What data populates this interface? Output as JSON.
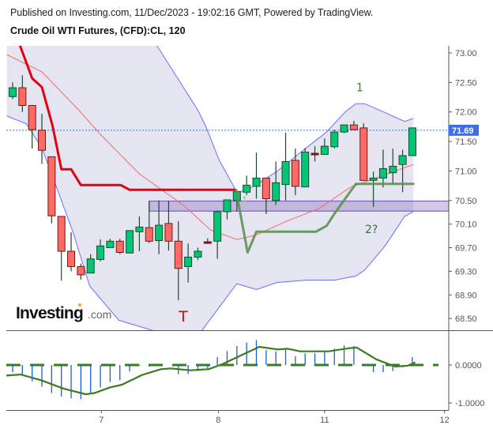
{
  "header": {
    "published": "Published on Investing.com, 11/Dec/2023 - 19:02:16 GMT, Powered by TradingView.",
    "symbol": "Crude Oil WTI Futures, (CFD):CL, 120"
  },
  "logo": {
    "text": "Investing",
    "suffix": ".com"
  },
  "colors": {
    "up": "#00c676",
    "down": "#ff6b62",
    "wick": "#1d4a2a",
    "band": "#6b6bff",
    "band_fill": "#e5e5f1",
    "ma": "#ef6b6b",
    "red_line": "#e3000f",
    "green_line": "#5c9150",
    "zone": "#8060b8",
    "price_line": "#3b6ee8",
    "hist": "#1a5fd6",
    "signal": "#3c7a23"
  },
  "chart_data": [
    {
      "type": "candlestick",
      "title": "Crude Oil WTI Futures, (CFD):CL, 120",
      "y_ticks": [
        "73.00",
        "72.50",
        "72.00",
        "71.50",
        "71.00",
        "70.50",
        "70.10",
        "69.70",
        "69.30",
        "68.90",
        "68.50"
      ],
      "ylim": [
        68.35,
        73.15
      ],
      "x_ticks": [
        {
          "label": "7",
          "bar": 9.1
        },
        {
          "label": "8",
          "bar": 21.1
        },
        {
          "label": "11",
          "bar": 32.0
        },
        {
          "label": "12",
          "bar": 44.3
        }
      ],
      "last_price": "71.69",
      "candles_ohlc": [
        [
          72.26,
          72.5,
          72.22,
          72.41
        ],
        [
          72.41,
          72.62,
          72.0,
          72.11
        ],
        [
          72.11,
          72.11,
          71.38,
          71.7
        ],
        [
          71.69,
          71.97,
          71.12,
          71.35
        ],
        [
          71.24,
          71.24,
          70.11,
          70.24
        ],
        [
          70.23,
          70.23,
          69.14,
          69.64
        ],
        [
          69.64,
          69.96,
          69.3,
          69.38
        ],
        [
          69.38,
          69.43,
          69.16,
          69.24
        ],
        [
          69.27,
          69.59,
          69.27,
          69.51
        ],
        [
          69.5,
          69.84,
          69.47,
          69.73
        ],
        [
          69.7,
          69.85,
          69.7,
          69.81
        ],
        [
          69.81,
          69.85,
          69.59,
          69.62
        ],
        [
          69.61,
          69.99,
          69.61,
          69.99
        ],
        [
          69.97,
          70.23,
          69.64,
          70.05
        ],
        [
          70.04,
          70.49,
          69.78,
          69.81
        ],
        [
          69.82,
          70.5,
          69.59,
          70.08
        ],
        [
          70.11,
          70.49,
          69.65,
          69.81
        ],
        [
          69.81,
          70.15,
          68.81,
          69.35
        ],
        [
          69.38,
          69.77,
          69.11,
          69.54
        ],
        [
          69.54,
          69.7,
          69.49,
          69.64
        ],
        [
          69.8,
          69.86,
          69.8,
          69.8
        ],
        [
          69.81,
          70.33,
          69.51,
          70.31
        ],
        [
          70.31,
          70.51,
          70.18,
          70.51
        ],
        [
          70.5,
          70.69,
          70.31,
          70.65
        ],
        [
          70.64,
          70.92,
          70.59,
          70.76
        ],
        [
          70.74,
          71.31,
          70.53,
          70.88
        ],
        [
          70.88,
          70.88,
          70.27,
          70.53
        ],
        [
          70.5,
          71.16,
          70.42,
          70.8
        ],
        [
          70.77,
          71.65,
          70.5,
          71.16
        ],
        [
          71.18,
          71.38,
          70.59,
          70.74
        ],
        [
          70.73,
          71.39,
          70.73,
          71.32
        ],
        [
          71.3,
          71.42,
          71.16,
          71.3
        ],
        [
          71.28,
          71.55,
          71.28,
          71.42
        ],
        [
          71.41,
          71.7,
          71.38,
          71.66
        ],
        [
          71.66,
          71.78,
          71.64,
          71.78
        ],
        [
          71.78,
          71.85,
          71.69,
          71.7
        ],
        [
          71.73,
          71.81,
          70.84,
          70.84
        ],
        [
          70.84,
          70.99,
          70.39,
          70.88
        ],
        [
          70.88,
          71.36,
          70.72,
          71.04
        ],
        [
          70.97,
          71.38,
          70.78,
          71.08
        ],
        [
          71.11,
          71.36,
          70.64,
          71.26
        ],
        [
          71.26,
          71.73,
          71.26,
          71.73
        ]
      ],
      "bollinger_upper": [
        [
          14.7,
          73.15
        ],
        [
          19.0,
          72.03
        ],
        [
          19.8,
          71.76
        ],
        [
          21.2,
          71.18
        ],
        [
          22.8,
          70.7
        ],
        [
          23.0,
          70.64
        ],
        [
          24.1,
          70.68
        ],
        [
          27.1,
          70.99
        ],
        [
          30.1,
          71.39
        ],
        [
          32.2,
          71.66
        ],
        [
          34.1,
          72.0
        ],
        [
          35.2,
          72.14
        ],
        [
          36.1,
          72.14
        ],
        [
          38.2,
          71.99
        ],
        [
          40.2,
          71.84
        ],
        [
          41.1,
          71.89
        ]
      ],
      "bollinger_lower": [
        [
          -0.6,
          71.93
        ],
        [
          1.4,
          71.8
        ],
        [
          3.0,
          71.39
        ],
        [
          4.4,
          70.77
        ],
        [
          6.2,
          69.96
        ],
        [
          7.9,
          69.05
        ],
        [
          10.9,
          68.47
        ],
        [
          14.9,
          68.27
        ],
        [
          17.0,
          68.05
        ],
        [
          19.2,
          68.25
        ],
        [
          23.0,
          69.09
        ],
        [
          25.0,
          68.99
        ],
        [
          27.1,
          69.11
        ],
        [
          30.1,
          69.15
        ],
        [
          33.0,
          69.15
        ],
        [
          35.2,
          69.22
        ],
        [
          36.1,
          69.32
        ],
        [
          38.2,
          69.73
        ],
        [
          40.2,
          70.23
        ],
        [
          41.1,
          70.31
        ]
      ],
      "moving_average": [
        [
          -0.6,
          72.97
        ],
        [
          3.0,
          72.68
        ],
        [
          6.8,
          72.03
        ],
        [
          9.0,
          71.62
        ],
        [
          13.0,
          70.95
        ],
        [
          17.6,
          70.41
        ],
        [
          20.3,
          70.0
        ],
        [
          23.0,
          69.84
        ],
        [
          24.9,
          69.91
        ],
        [
          28.1,
          70.15
        ],
        [
          31.4,
          70.36
        ],
        [
          34.6,
          70.72
        ],
        [
          37.8,
          70.91
        ],
        [
          41.1,
          71.11
        ]
      ],
      "red_trend_line": [
        [
          0.7,
          73.15
        ],
        [
          2.0,
          72.57
        ],
        [
          3.0,
          72.42
        ],
        [
          4.1,
          71.76
        ],
        [
          5.0,
          71.03
        ],
        [
          6.0,
          71.03
        ],
        [
          7.0,
          70.76
        ],
        [
          11.1,
          70.76
        ],
        [
          12.0,
          70.68
        ],
        [
          22.9,
          70.68
        ]
      ],
      "green_trend_line": [
        [
          22.9,
          70.68
        ],
        [
          24.1,
          69.62
        ],
        [
          25.0,
          69.97
        ],
        [
          31.1,
          69.97
        ],
        [
          32.2,
          70.07
        ],
        [
          33.1,
          70.3
        ],
        [
          35.2,
          70.78
        ],
        [
          41.2,
          70.78
        ]
      ],
      "zone": {
        "from_bar": 14.0,
        "low": 70.32,
        "high": 70.49
      },
      "annotations": [
        {
          "text": "1",
          "bar": 35.6,
          "price": 72.35,
          "color": "#3c7a23"
        },
        {
          "text": "2?",
          "bar": 36.8,
          "price": 69.95,
          "color": "#3c6a40"
        },
        {
          "text": "T",
          "bar": 17.5,
          "price": 68.45,
          "color": "#e3000f"
        }
      ]
    },
    {
      "type": "bar+line",
      "y_ticks": [
        "0.0000",
        "-1.0000"
      ],
      "ylim": [
        -1.15,
        0.9
      ],
      "histogram": [
        -0.19,
        -0.25,
        -0.43,
        -0.57,
        -0.74,
        -0.83,
        -0.88,
        -0.9,
        -0.76,
        -0.59,
        -0.45,
        -0.4,
        -0.17,
        -0.02,
        -0.04,
        0.03,
        0.0,
        -0.24,
        -0.24,
        -0.16,
        -0.09,
        0.21,
        0.37,
        0.5,
        0.59,
        0.66,
        0.39,
        0.36,
        0.43,
        0.23,
        0.31,
        0.31,
        0.37,
        0.43,
        0.52,
        0.5,
        -0.02,
        -0.19,
        -0.19,
        -0.16,
        -0.06,
        0.21
      ],
      "signal": [
        [
          -0.65,
          -0.28
        ],
        [
          0.8,
          -0.25
        ],
        [
          2.9,
          -0.4
        ],
        [
          5.2,
          -0.62
        ],
        [
          7.5,
          -0.77
        ],
        [
          8.4,
          -0.74
        ],
        [
          10.0,
          -0.59
        ],
        [
          11.2,
          -0.52
        ],
        [
          13.3,
          -0.26
        ],
        [
          15.2,
          -0.11
        ],
        [
          16.2,
          -0.09
        ],
        [
          18.2,
          -0.14
        ],
        [
          20.1,
          -0.11
        ],
        [
          21.4,
          0.01
        ],
        [
          25.3,
          0.48
        ],
        [
          27.2,
          0.41
        ],
        [
          28.2,
          0.43
        ],
        [
          29.5,
          0.36
        ],
        [
          32.4,
          0.36
        ],
        [
          34.4,
          0.44
        ],
        [
          35.3,
          0.46
        ],
        [
          37.3,
          0.15
        ],
        [
          39.2,
          -0.04
        ],
        [
          40.5,
          -0.02
        ],
        [
          41.3,
          0.07
        ]
      ]
    }
  ]
}
